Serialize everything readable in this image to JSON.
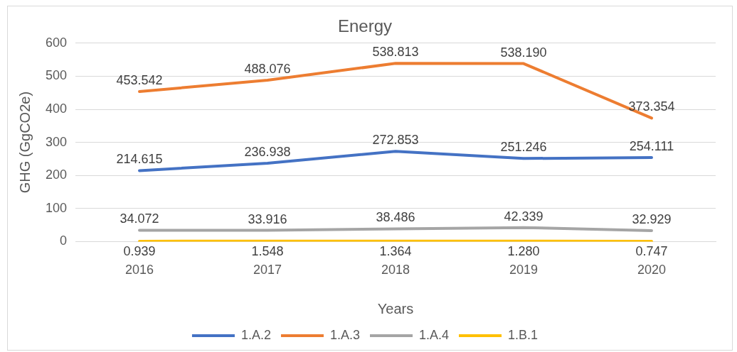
{
  "chart_data": {
    "type": "line",
    "title": "Energy",
    "xlabel": "Years",
    "ylabel": "GHG (GgCO2e)",
    "categories": [
      "2016",
      "2017",
      "2018",
      "2019",
      "2020"
    ],
    "series": [
      {
        "name": "1.A.2",
        "color": "#4472c4",
        "values": [
          214.615,
          236.938,
          272.853,
          251.246,
          254.111
        ],
        "value_labels": [
          "214.615",
          "236.938",
          "272.853",
          "251.246",
          "254.111"
        ]
      },
      {
        "name": "1.A.3",
        "color": "#ed7d31",
        "values": [
          453.542,
          488.076,
          538.813,
          538.19,
          373.354
        ],
        "value_labels": [
          "453.542",
          "488.076",
          "538.813",
          "538.190",
          "373.354"
        ]
      },
      {
        "name": "1.A.4",
        "color": "#a5a5a5",
        "values": [
          34.072,
          33.916,
          38.486,
          42.339,
          32.929
        ],
        "value_labels": [
          "34.072",
          "33.916",
          "38.486",
          "42.339",
          "32.929"
        ]
      },
      {
        "name": "1.B.1",
        "color": "#ffc000",
        "values": [
          0.939,
          1.548,
          1.364,
          1.28,
          0.747
        ],
        "value_labels": [
          "0.939",
          "1.548",
          "1.364",
          "1.280",
          "0.747"
        ]
      }
    ],
    "ylim": [
      0,
      600
    ],
    "yticks": [
      0,
      100,
      200,
      300,
      400,
      500,
      600
    ],
    "grid": "y",
    "legend": "bottom",
    "marker": "none",
    "line_style": "solid"
  }
}
